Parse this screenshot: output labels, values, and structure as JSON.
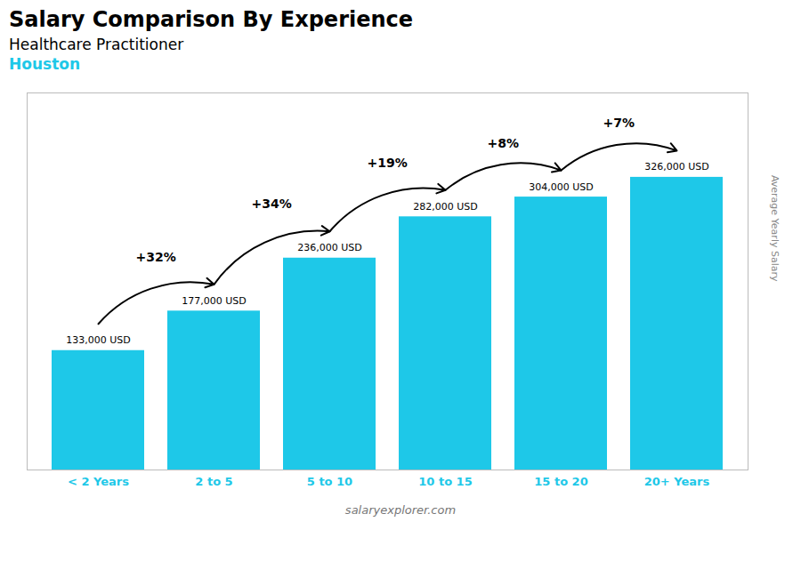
{
  "chart_data": {
    "type": "bar",
    "title": "Salary Comparison By Experience",
    "subtitle": [
      "Healthcare Practitioner",
      "Houston"
    ],
    "categories": [
      "< 2 Years",
      "2 to 5",
      "5 to 10",
      "10 to 15",
      "15 to 20",
      "20+ Years"
    ],
    "values": [
      133000,
      177000,
      236000,
      282000,
      304000,
      326000
    ],
    "value_labels": [
      "133,000 USD",
      "177,000 USD",
      "236,000 USD",
      "282,000 USD",
      "304,000 USD",
      "326,000 USD"
    ],
    "data_labels": true,
    "annotations": [
      "+32%",
      "+34%",
      "+19%",
      "+8%",
      "+7%"
    ],
    "ylabel": "Average Yearly Salary",
    "caption": "salaryexplorer.com",
    "color": "#1ec8e8",
    "ylim": [
      0,
      420000
    ],
    "tick_labels": "x",
    "grid": false
  }
}
